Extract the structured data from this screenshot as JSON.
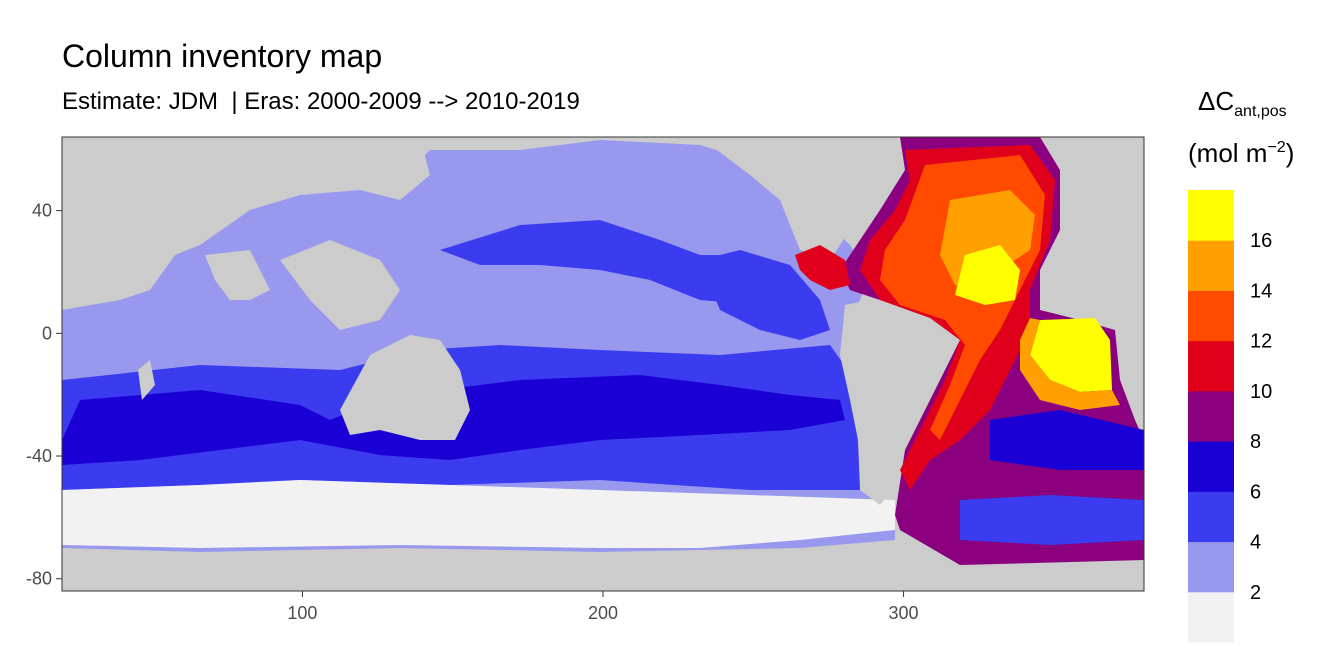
{
  "title": "Column inventory map",
  "subtitle": "Estimate: JDM  | Eras: 2000-2009 --> 2010-2019",
  "legend": {
    "symbol": "ΔC",
    "subscript": "ant,pos",
    "unit_open": "(mol m",
    "unit_sup": "−2",
    "unit_close": ")",
    "bins": [
      {
        "color": "#f2f2f2"
      },
      {
        "color": "#9898ee"
      },
      {
        "color": "#3b3bf0"
      },
      {
        "color": "#1a00d5"
      },
      {
        "color": "#8b007f"
      },
      {
        "color": "#e0001c"
      },
      {
        "color": "#ff4a00"
      },
      {
        "color": "#ff9f00"
      },
      {
        "color": "#ffff00"
      }
    ],
    "labels": [
      "2",
      "4",
      "6",
      "8",
      "10",
      "12",
      "14",
      "16"
    ]
  },
  "axes": {
    "x_ticks": [
      100,
      200,
      300
    ],
    "y_ticks": [
      40,
      0,
      -40,
      -80
    ],
    "x_range": [
      20,
      380
    ],
    "y_range": [
      -84,
      64
    ]
  },
  "colors": {
    "land": "#cccccc",
    "panel_border": "#333333"
  }
}
